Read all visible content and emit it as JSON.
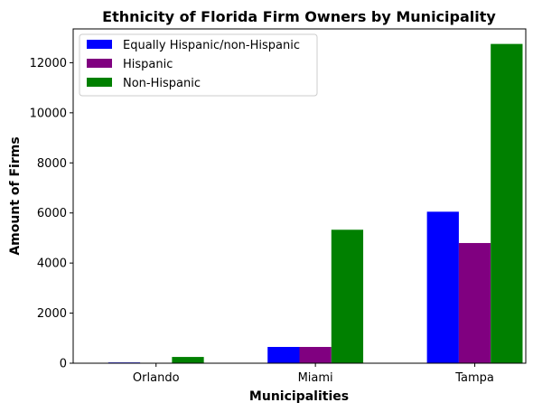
{
  "chart_data": {
    "type": "bar",
    "title": "Ethnicity of Florida Firm Owners by Municipality",
    "xlabel": "Municipalities",
    "ylabel": "Amount of Firms",
    "categories": [
      "Orlando",
      "Miami",
      "Tampa"
    ],
    "series": [
      {
        "name": "Equally Hispanic/non-Hispanic",
        "color": "#0000ff",
        "values": [
          30,
          650,
          6050
        ]
      },
      {
        "name": "Hispanic",
        "color": "#800080",
        "values": [
          0,
          650,
          4800
        ]
      },
      {
        "name": "Non-Hispanic",
        "color": "#008000",
        "values": [
          250,
          5330,
          12750
        ]
      }
    ],
    "ylim": [
      0,
      13350
    ],
    "yticks": [
      0,
      2000,
      4000,
      6000,
      8000,
      10000,
      12000
    ],
    "ytick_labels": [
      "0",
      "2000",
      "4000",
      "6000",
      "8000",
      "10000",
      "12000"
    ],
    "grid": false,
    "legend_position": "top-left"
  }
}
